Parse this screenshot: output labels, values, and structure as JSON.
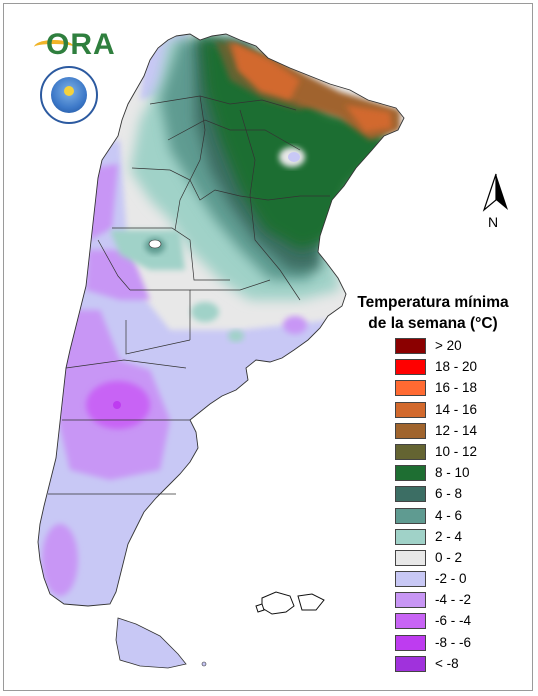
{
  "map": {
    "legend_title_line1": "Temperatura mínima",
    "legend_title_line2": "de la semana (°C)",
    "north_label": "N",
    "legend": [
      {
        "label": "> 20",
        "color": "#8b0000"
      },
      {
        "label": "18 - 20",
        "color": "#ff0000"
      },
      {
        "label": "16 - 18",
        "color": "#ff6a32"
      },
      {
        "label": "14 - 16",
        "color": "#d2692d"
      },
      {
        "label": "12 - 14",
        "color": "#a0642d"
      },
      {
        "label": "10 - 12",
        "color": "#646432"
      },
      {
        "label": "8 - 10",
        "color": "#1e6e32"
      },
      {
        "label": "6 - 8",
        "color": "#3c6e64"
      },
      {
        "label": "4 - 6",
        "color": "#5f9b91"
      },
      {
        "label": "2 - 4",
        "color": "#a0d2c8"
      },
      {
        "label": "0 - 2",
        "color": "#e8e8e8"
      },
      {
        "label": "-2 - 0",
        "color": "#c8c8f5"
      },
      {
        "label": "-4 - -2",
        "color": "#c896f5"
      },
      {
        "label": "-6 - -4",
        "color": "#c864f5"
      },
      {
        "label": "-8 - -6",
        "color": "#be3cf0"
      },
      {
        "label": "< -8",
        "color": "#a032dc"
      }
    ]
  }
}
